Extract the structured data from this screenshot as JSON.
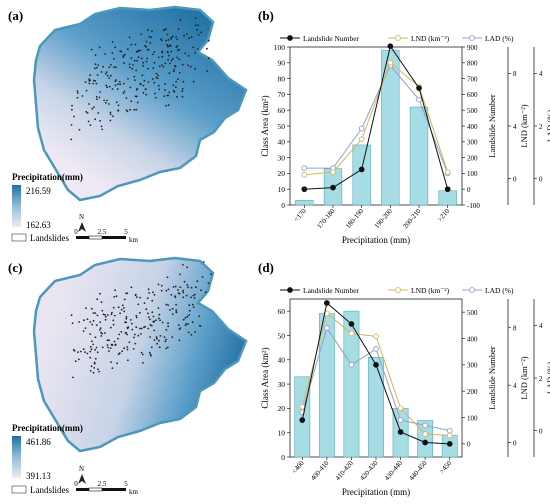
{
  "panels": [
    {
      "id": "a",
      "letter": "(a)"
    },
    {
      "id": "b",
      "letter": "(b)"
    },
    {
      "id": "c",
      "letter": "(c)"
    },
    {
      "id": "d",
      "letter": "(d)"
    }
  ],
  "maps": [
    {
      "panel": "a",
      "colorbar_title": "Precipitation(mm)",
      "colorbar_max": "216.59",
      "colorbar_min": "162.63",
      "landslides_label": "Landslides",
      "north_label": "N",
      "scale_ticks": [
        "0",
        "2.5",
        "5"
      ],
      "scale_unit": "km",
      "gradient": {
        "high": "#1e6fa3",
        "mid": "#8fbfd9",
        "low": "#efe9f3"
      }
    },
    {
      "panel": "c",
      "colorbar_title": "Precipitation(mm)",
      "colorbar_max": "461.86",
      "colorbar_min": "391.13",
      "landslides_label": "Landslides",
      "north_label": "N",
      "scale_ticks": [
        "0",
        "2.5",
        "5"
      ],
      "scale_unit": "km",
      "gradient": {
        "high": "#1e6fa3",
        "mid": "#8fbfd9",
        "low": "#efe9f3"
      }
    }
  ],
  "colors": {
    "bar_fill": "#a6dde4",
    "bar_stroke": "#5aaab5",
    "landslide_number": "#111111",
    "lnd": "#d8b45a",
    "lad": "#8fa0cc"
  },
  "chart_data": [
    {
      "panel": "b",
      "type": "bar",
      "xlabel": "Precipitation (mm)",
      "ylabel": "Class Area (km²)",
      "categories": [
        "<170",
        "170-180",
        "180-190",
        "190-200",
        "200-210",
        ">210"
      ],
      "ylim": [
        0,
        100
      ],
      "yticks": [
        0,
        10,
        20,
        30,
        40,
        50,
        60,
        70,
        80,
        90,
        100
      ],
      "legend": {
        "items": [
          "Landslide Number",
          "LND (km⁻²)",
          "LAD (%)"
        ],
        "placement": "top"
      },
      "bar_series": {
        "name": "Class Area",
        "values": [
          3,
          23,
          38,
          98,
          62,
          9
        ]
      },
      "line_series": [
        {
          "name": "Landslide Number",
          "axis": "landslide_number",
          "values": [
            0,
            10,
            125,
            905,
            640,
            0
          ],
          "marker": "filled"
        },
        {
          "name": "LND (km⁻²)",
          "axis": "lnd",
          "values": [
            0.3,
            0.5,
            3.0,
            8.8,
            7.0,
            0.5
          ],
          "marker": "open"
        },
        {
          "name": "LAD (%)",
          "axis": "lad",
          "values": [
            0.4,
            0.4,
            1.9,
            4.3,
            3.0,
            0.2
          ],
          "marker": "open"
        }
      ],
      "right_axes": [
        {
          "id": "landslide_number",
          "label": "Landslide Number",
          "range": [
            -100,
            900
          ],
          "ticks": [
            -100,
            0,
            100,
            200,
            300,
            400,
            500,
            600,
            700,
            800,
            900
          ]
        },
        {
          "id": "lnd",
          "label": "LND (km⁻²)",
          "range": [
            -2,
            10
          ],
          "ticks": [
            0,
            4,
            8
          ]
        },
        {
          "id": "lad",
          "label": "LAD (%)",
          "range": [
            -1,
            5
          ],
          "ticks": [
            0,
            2,
            4
          ]
        }
      ]
    },
    {
      "panel": "d",
      "type": "bar",
      "xlabel": "Precipitation (mm)",
      "ylabel": "Class Area (km²)",
      "categories": [
        "<400",
        "400-410",
        "410-420",
        "420-430",
        "430-440",
        "440-450",
        ">450"
      ],
      "ylim": [
        0,
        65
      ],
      "yticks": [
        0,
        10,
        20,
        30,
        40,
        50,
        60
      ],
      "legend": {
        "items": [
          "Landslide Number",
          "LND (km⁻²)",
          "LAD (%)"
        ],
        "placement": "top"
      },
      "bar_series": {
        "name": "Class Area",
        "values": [
          33,
          59,
          60,
          41,
          20,
          15,
          9
        ]
      },
      "line_series": [
        {
          "name": "Landslide Number",
          "axis": "landslide_number",
          "values": [
            90,
            535,
            455,
            300,
            45,
            5,
            0
          ],
          "marker": "filled"
        },
        {
          "name": "LND (km⁻²)",
          "axis": "lnd",
          "values": [
            2.5,
            9.0,
            7.6,
            7.4,
            2.4,
            0.6,
            0.5
          ],
          "marker": "open"
        },
        {
          "name": "LAD (%)",
          "axis": "lad",
          "values": [
            0.7,
            3.9,
            2.5,
            3.1,
            0.4,
            0.2,
            0.0
          ],
          "marker": "open"
        }
      ],
      "right_axes": [
        {
          "id": "landslide_number",
          "label": "Landslide Number",
          "range": [
            -50,
            550
          ],
          "ticks": [
            0,
            100,
            200,
            300,
            400,
            500
          ]
        },
        {
          "id": "lnd",
          "label": "LND (km⁻²)",
          "range": [
            -1,
            10
          ],
          "ticks": [
            0,
            4,
            8
          ]
        },
        {
          "id": "lad",
          "label": "LAD (%)",
          "range": [
            -1,
            5
          ],
          "ticks": [
            0,
            2,
            4
          ]
        }
      ]
    }
  ]
}
